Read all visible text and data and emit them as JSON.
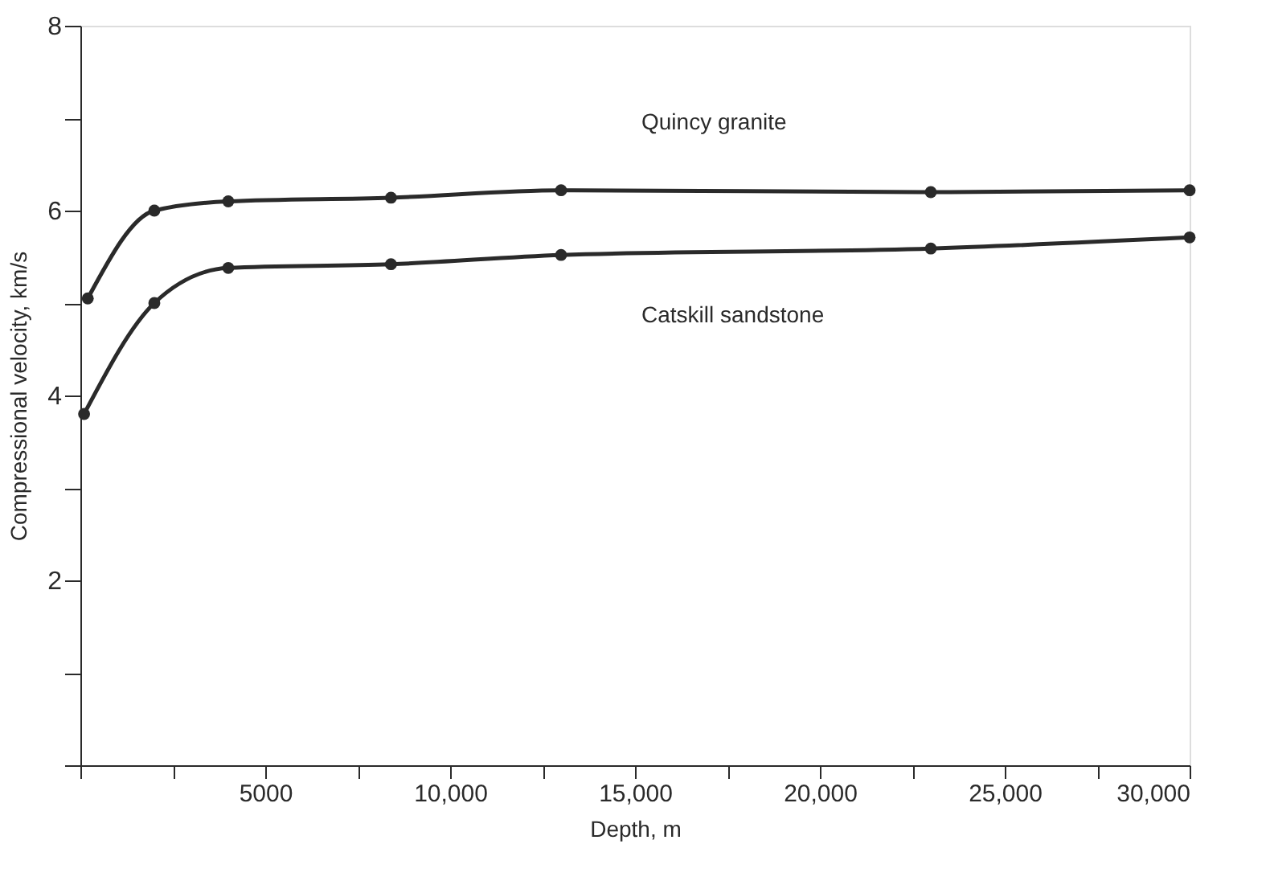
{
  "chart_data": {
    "type": "line",
    "xlabel": "Depth, m",
    "ylabel": "Compressional velocity, km/s",
    "series": [
      {
        "name": "Quincy granite",
        "color": "#2a2a2a",
        "x": [
          200,
          2000,
          4000,
          8400,
          13000,
          23000,
          30000
        ],
        "values": [
          5.05,
          6.0,
          6.1,
          6.14,
          6.22,
          6.2,
          6.22
        ]
      },
      {
        "name": "Catskill sandstone",
        "color": "#2a2a2a",
        "x": [
          100,
          2000,
          4000,
          8400,
          13000,
          23000,
          30000
        ],
        "values": [
          3.8,
          5.0,
          5.38,
          5.42,
          5.52,
          5.59,
          5.71
        ]
      }
    ],
    "xlim": [
      0,
      30000
    ],
    "xticks": [
      {
        "value": 0,
        "label": null
      },
      {
        "value": 2500,
        "label": null
      },
      5000,
      {
        "value": 7500,
        "label": null
      },
      {
        "value": 10000,
        "label": "10,000"
      },
      {
        "value": 12500,
        "label": null
      },
      {
        "value": 15000,
        "label": "15,000"
      },
      {
        "value": 17500,
        "label": null
      },
      {
        "value": 20000,
        "label": "20,000"
      },
      {
        "value": 22500,
        "label": null
      },
      {
        "value": 25000,
        "label": "25,000"
      },
      {
        "value": 27500,
        "label": null
      },
      {
        "value": 30000,
        "label": "30,000"
      }
    ],
    "ylim": [
      0,
      8
    ],
    "yticks": [
      {
        "value": 0,
        "label": null
      },
      {
        "value": 1,
        "label": null
      },
      2,
      {
        "value": 3,
        "label": null
      },
      4,
      {
        "value": 5,
        "label": null
      },
      6,
      {
        "value": 7,
        "label": null
      },
      8
    ],
    "marker": "circle",
    "line_style": "solid",
    "grid": false,
    "legend": false
  }
}
